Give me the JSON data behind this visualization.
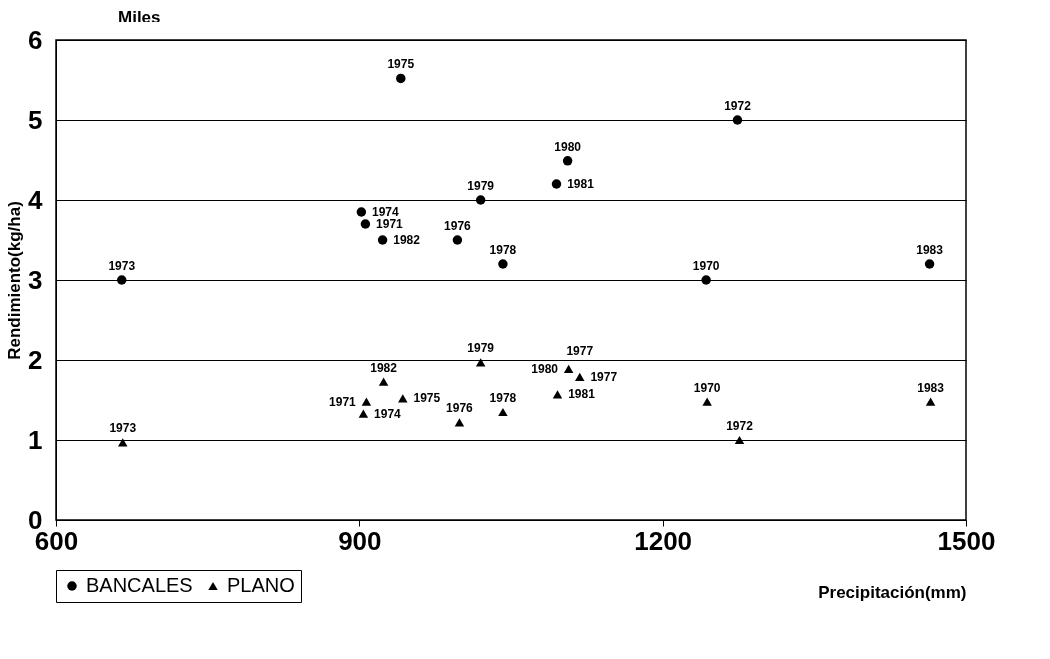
{
  "chart_data": {
    "type": "scatter",
    "xlabel": "Precipitación(mm)",
    "ylabel": "Rendimiento(kg/ha)",
    "annotations": [
      "Miles",
      {
        "text": "1973",
        "x": 665,
        "y": 3.0
      },
      {
        "text": "1974",
        "x": 902,
        "y": 3.85
      },
      {
        "text": "1971",
        "x": 906,
        "y": 3.7
      },
      {
        "text": "1982",
        "x": 923,
        "y": 3.5
      },
      {
        "text": "1975",
        "x": 941,
        "y": 5.52
      },
      {
        "text": "1976",
        "x": 997,
        "y": 3.5
      },
      {
        "text": "1979",
        "x": 1020,
        "y": 4.0
      },
      {
        "text": "1978",
        "x": 1042,
        "y": 3.2
      },
      {
        "text": "1981",
        "x": 1095,
        "y": 4.2
      },
      {
        "text": "1980",
        "x": 1106,
        "y": 4.49
      },
      {
        "text": "1970",
        "x": 1243,
        "y": 3.0
      },
      {
        "text": "1972",
        "x": 1274,
        "y": 5.0
      },
      {
        "text": "1983",
        "x": 1464,
        "y": 3.2
      },
      {
        "text": "1973",
        "x": 666,
        "y": 0.97
      },
      {
        "text": "1974",
        "x": 904,
        "y": 1.33
      },
      {
        "text": "1971",
        "x": 907,
        "y": 1.48
      },
      {
        "text": "1982",
        "x": 924,
        "y": 1.73
      },
      {
        "text": "1975",
        "x": 943,
        "y": 1.52
      },
      {
        "text": "1976",
        "x": 999,
        "y": 1.22
      },
      {
        "text": "1979",
        "x": 1020,
        "y": 1.97
      },
      {
        "text": "1978",
        "x": 1042,
        "y": 1.35
      },
      {
        "text": "1981",
        "x": 1096,
        "y": 1.57
      },
      {
        "text": "1980",
        "x": 1107,
        "y": 1.89
      },
      {
        "text": "1977",
        "x": 1118,
        "y": 1.79
      },
      {
        "text": "1977",
        "x": 1118,
        "y": 1.79
      },
      {
        "text": "1970",
        "x": 1244,
        "y": 1.48
      },
      {
        "text": "1972",
        "x": 1276,
        "y": 1.0
      },
      {
        "text": "1983",
        "x": 1465,
        "y": 1.48
      }
    ],
    "xlim": [
      600,
      1500
    ],
    "xticks": [
      600,
      900,
      1200,
      1500
    ],
    "ylim": [
      0,
      6
    ],
    "yticks": [
      0,
      1,
      2,
      3,
      4,
      5,
      6
    ],
    "grid": "y",
    "legend": "bottom",
    "series": [
      {
        "name": "BANCALES",
        "color": "#000000",
        "marker": "circle",
        "x": [
          665,
          902,
          906,
          923,
          941,
          997,
          1020,
          1042,
          1095,
          1106,
          1243,
          1274,
          1464
        ],
        "values": [
          3.0,
          3.85,
          3.7,
          3.5,
          5.52,
          3.5,
          4.0,
          3.2,
          4.2,
          4.49,
          3.0,
          5.0,
          3.2
        ]
      },
      {
        "name": "PLANO",
        "color": "#000000",
        "marker": "triangle",
        "x": [
          666,
          904,
          907,
          924,
          943,
          999,
          1020,
          1042,
          1096,
          1107,
          1118,
          1244,
          1276,
          1465
        ],
        "values": [
          0.97,
          1.33,
          1.48,
          1.73,
          1.52,
          1.22,
          1.97,
          1.35,
          1.57,
          1.89,
          1.79,
          1.48,
          1.0,
          1.48
        ]
      }
    ]
  }
}
